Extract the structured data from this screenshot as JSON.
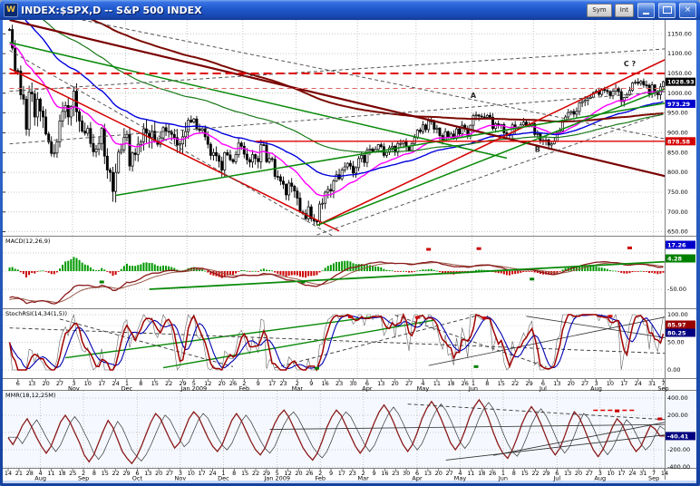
{
  "window": {
    "title": "INDEX:$SPX,D -- S&P 500 INDEX",
    "icon_letter": "W",
    "toolbar_buttons": [
      "Sym",
      "Int"
    ],
    "controls": {
      "close_glyph": "×"
    }
  },
  "colors": {
    "panel_bg": "#ffffff",
    "grid": "#b9b9b9",
    "band": "#c6d8f5",
    "candle": "#000000",
    "ema21": "#ff00ff",
    "ema50": "#0000dd",
    "ema100": "#1a7a1a",
    "ema200": "#7b0a02",
    "macd_pos": "#009900",
    "macd_neg": "#cc0000",
    "badge_last": "#000000",
    "badge_blue": "#0000cd",
    "badge_red": "#d40000",
    "badge_navy": "#000080",
    "badge_green": "#008000"
  },
  "chart_data": [
    {
      "type": "candlestick",
      "symbol": "INDEX:$SPX,D",
      "name": "S&P 500 INDEX",
      "ylim": [
        640,
        1185
      ],
      "y_ticks": [
        "1150.00",
        "1100.00",
        "1050.00",
        "1000.00",
        "950.00",
        "900.00",
        "850.00",
        "800.00",
        "750.00",
        "700.00",
        "650.00"
      ],
      "y_tick_prices": [
        1150,
        1100,
        1050,
        1000,
        950,
        900,
        850,
        800,
        750,
        700,
        650
      ],
      "closes": [
        1161,
        1114,
        1057,
        1056,
        996,
        985,
        909,
        1003,
        998,
        940,
        985,
        955,
        940,
        897,
        877,
        848,
        849,
        877,
        930,
        954,
        969,
        940,
        966,
        1005,
        953,
        930,
        904,
        899,
        911,
        873,
        852,
        859,
        873,
        911,
        841,
        806,
        800,
        752,
        800,
        851,
        857,
        888,
        896,
        816,
        849,
        845,
        871,
        877,
        910,
        899,
        888,
        904,
        879,
        871,
        887,
        913,
        904,
        902,
        896,
        888,
        869,
        872,
        890,
        903,
        932,
        927,
        935,
        910,
        906,
        910,
        890,
        871,
        843,
        850,
        842,
        828,
        806,
        850,
        844,
        832,
        827,
        845,
        874,
        866,
        846,
        832,
        826,
        845,
        835,
        827,
        870,
        869,
        827,
        835,
        833,
        790,
        789,
        778,
        770,
        743,
        773,
        765,
        753,
        735,
        700,
        696,
        683,
        713,
        683,
        677,
        676,
        720,
        722,
        750,
        757,
        753,
        778,
        794,
        784,
        806,
        814,
        823,
        816,
        798,
        812,
        835,
        843,
        825,
        856,
        859,
        852,
        858,
        870,
        865,
        843,
        851,
        862,
        866,
        851,
        873,
        873,
        878,
        866,
        855,
        873,
        888,
        907,
        903,
        920,
        908,
        930,
        929,
        909,
        912,
        893,
        883,
        903,
        888,
        897,
        887,
        910,
        897,
        919,
        910,
        893,
        919,
        943,
        945,
        942,
        940,
        939,
        944,
        939,
        911,
        923,
        918,
        921,
        900,
        893,
        896,
        920,
        910,
        913,
        920,
        927,
        919,
        920,
        923,
        896,
        898,
        881,
        879,
        882,
        869,
        872,
        879,
        901,
        905,
        932,
        940,
        951,
        954,
        947,
        954,
        976,
        979,
        982,
        987,
        990,
        1002,
        1005,
        997,
        1010,
        1007,
        1004,
        994,
        1005,
        1012,
        1004,
        979,
        989,
        996,
        1007,
        1026,
        1028,
        1025,
        1030,
        1021,
        1020,
        998,
        1021,
        1003,
        996,
        1016,
        1029
      ],
      "month_start_indices": [
        23,
        42,
        64,
        84,
        103,
        125,
        146,
        166,
        188,
        210,
        231
      ],
      "moving_averages": [
        {
          "name": "EMA21",
          "color": "#ff00ff",
          "period": 21
        },
        {
          "name": "EMA50",
          "color": "#0000dd",
          "period": 50
        },
        {
          "name": "EMA100",
          "color": "#1a7a1a",
          "period": 100
        },
        {
          "name": "EMA200",
          "color": "#7b0a02",
          "period": 200
        }
      ],
      "badges": [
        {
          "label": "1028.93",
          "price": 1028.93,
          "color": "#000000"
        },
        {
          "label": "973.29",
          "price": 973.29,
          "color": "#0000cd"
        },
        {
          "label": "878.58",
          "price": 878.58,
          "color": "#d40000"
        }
      ],
      "annotations": [
        {
          "text": "A",
          "i": 166,
          "price": 988
        },
        {
          "text": "B",
          "i": 189,
          "price": 852
        },
        {
          "text": "C ?",
          "i": 222,
          "price": 1068
        }
      ],
      "trendlines": [
        [
          0,
          1185,
          235,
          790,
          "#7a0000",
          2.2,
          ""
        ],
        [
          0,
          1062,
          118,
          652,
          "#d40000",
          1.5,
          ""
        ],
        [
          110,
          666,
          235,
          1086,
          "#d40000",
          1.5,
          ""
        ],
        [
          110,
          666,
          235,
          1012,
          "#0a8a0a",
          1.5,
          ""
        ],
        [
          38,
          742,
          235,
          975,
          "#0a8a0a",
          1.5,
          ""
        ],
        [
          0,
          1128,
          178,
          836,
          "#0a8a0a",
          1.5,
          ""
        ],
        [
          0,
          1005,
          235,
          1112,
          "#555555",
          1,
          "4,3"
        ],
        [
          0,
          872,
          235,
          1004,
          "#555555",
          1,
          "4,3"
        ],
        [
          0,
          1108,
          118,
          630,
          "#555555",
          1,
          "4,3"
        ],
        [
          26,
          1185,
          235,
          884,
          "#555555",
          1,
          "4,3"
        ],
        [
          110,
          642,
          235,
          952,
          "#555555",
          1,
          "4,3"
        ]
      ],
      "hlines": [
        [
          1050,
          0,
          235,
          "#e00000",
          2,
          "9,5"
        ],
        [
          1012,
          0,
          235,
          "#e06060",
          1,
          "5,4"
        ],
        [
          878.5,
          88,
          235,
          "#e00000",
          1.4,
          ""
        ]
      ]
    },
    {
      "type": "macd",
      "label": "MACD(12,26,9)",
      "params": [
        12,
        26,
        9
      ],
      "y_tick": "-50.00",
      "badges": [
        {
          "label": "17.26",
          "color": "#0000cd"
        },
        {
          "label": "4.28",
          "color": "#008000"
        }
      ],
      "trendline": [
        50,
        -50,
        235,
        26
      ],
      "markers": {
        "green": [
          [
            33,
            -30
          ],
          [
            105,
            -30
          ],
          [
            187,
            -22
          ]
        ],
        "red": [
          [
            150,
            60
          ],
          [
            168,
            62
          ],
          [
            222,
            64
          ]
        ]
      }
    },
    {
      "type": "stochrsi",
      "label": "StochRSI(14,34(1,5))",
      "params": [
        14,
        3,
        5
      ],
      "y_ticks": [
        "100.00",
        "50.00",
        "0.00"
      ],
      "badges": [
        {
          "label": "85.97",
          "color": "#990000"
        },
        {
          "label": "80.25",
          "color": "#000080"
        }
      ],
      "lines": [
        [
          20,
          22,
          130,
          96,
          "#0a8a0a",
          1.4,
          ""
        ],
        [
          55,
          4,
          152,
          90,
          "#0a8a0a",
          1.4,
          ""
        ],
        [
          0,
          76,
          235,
          30,
          "#333333",
          0.9,
          "4,3"
        ],
        [
          95,
          4,
          168,
          99,
          "#333333",
          0.9,
          "4,3"
        ],
        [
          138,
          99,
          192,
          6,
          "#333333",
          0.9,
          "4,3"
        ],
        [
          18,
          92,
          80,
          6,
          "#333333",
          0.9,
          "4,3"
        ],
        [
          150,
          8,
          235,
          96,
          "#333333",
          0.8,
          ""
        ],
        [
          185,
          97,
          235,
          58,
          "#333333",
          0.8,
          ""
        ]
      ],
      "markers": {
        "red": [
          [
            122,
            96
          ],
          [
            146,
            95
          ],
          [
            170,
            94
          ],
          [
            215,
            97
          ]
        ],
        "green": [
          [
            110,
            3
          ],
          [
            167,
            6
          ]
        ]
      }
    },
    {
      "type": "oscillator",
      "label": "MMR(18,12,25M)",
      "y_ticks": [
        "400.00",
        "200.00",
        "-200.00",
        "-400.00"
      ],
      "y_tick_values": [
        400,
        200,
        -200,
        -400
      ],
      "badge": {
        "label": "-40.41",
        "color": "#000080"
      },
      "values": [
        -60,
        -140,
        -40,
        80,
        160,
        60,
        -60,
        -160,
        -240,
        -160,
        -20,
        120,
        200,
        120,
        0,
        -120,
        -260,
        -340,
        -260,
        -120,
        20,
        140,
        60,
        -80,
        -220,
        -300,
        -360,
        -280,
        -160,
        -20,
        120,
        220,
        160,
        40,
        -80,
        -180,
        -120,
        20,
        160,
        240,
        180,
        60,
        -60,
        -160,
        -220,
        -140,
        0,
        140,
        220,
        140,
        20,
        -100,
        -200,
        -260,
        -180,
        -40,
        100,
        200,
        260,
        180,
        60,
        -60,
        -180,
        -260,
        -320,
        -240,
        -100,
        60,
        180,
        260,
        200,
        80,
        -40,
        -160,
        -240,
        -160,
        -20,
        120,
        240,
        320,
        240,
        120,
        -20,
        -140,
        -220,
        -140,
        0,
        160,
        280,
        360,
        280,
        160,
        20,
        -120,
        -200,
        -120,
        20,
        180,
        300,
        380,
        300,
        160,
        0,
        -140,
        -240,
        -300,
        -200,
        -60,
        100,
        220,
        300,
        220,
        100,
        -40,
        -180,
        -260,
        -180,
        -40,
        120,
        240,
        180,
        60,
        -80,
        -200,
        -280,
        -200,
        -80,
        60,
        160,
        100,
        -20,
        -140,
        -220,
        -160,
        -40,
        80,
        40,
        -40,
        -41
      ],
      "lines": [
        [
          92,
          -320,
          138,
          -28,
          "#333333",
          0.9,
          ""
        ],
        [
          102,
          -265,
          138,
          118,
          "#333333",
          0.9,
          ""
        ],
        [
          55,
          36,
          138,
          92,
          "#333333",
          0.8,
          ""
        ],
        [
          84,
          330,
          138,
          150,
          "#333333",
          0.9,
          "4,3"
        ],
        [
          123,
          258,
          132,
          258,
          "#e00000",
          1.6,
          "5,3"
        ]
      ],
      "markers": {
        "red": [
          [
            128,
            250
          ],
          [
            137,
            158
          ]
        ]
      }
    }
  ],
  "axes": {
    "main_ticks": [
      [
        3,
        "6"
      ],
      [
        8,
        "13"
      ],
      [
        13,
        "20"
      ],
      [
        18,
        "27"
      ],
      [
        23,
        "3",
        "Nov"
      ],
      [
        28,
        "10"
      ],
      [
        33,
        "17"
      ],
      [
        38,
        "24"
      ],
      [
        42,
        "1",
        "Dec"
      ],
      [
        47,
        "8"
      ],
      [
        52,
        "15"
      ],
      [
        57,
        "22"
      ],
      [
        62,
        "29"
      ],
      [
        66,
        "5",
        "Jan 2009"
      ],
      [
        71,
        "12"
      ],
      [
        76,
        "20"
      ],
      [
        80,
        "26"
      ],
      [
        84,
        "2",
        "Feb"
      ],
      [
        89,
        "9"
      ],
      [
        94,
        "17"
      ],
      [
        98,
        "23"
      ],
      [
        103,
        "2",
        "Mar"
      ],
      [
        108,
        "9"
      ],
      [
        113,
        "16"
      ],
      [
        118,
        "23"
      ],
      [
        123,
        "30"
      ],
      [
        128,
        "6",
        "Apr"
      ],
      [
        133,
        "13"
      ],
      [
        138,
        "20"
      ],
      [
        143,
        "27"
      ],
      [
        148,
        "4",
        "May"
      ],
      [
        153,
        "11"
      ],
      [
        158,
        "18"
      ],
      [
        163,
        "26"
      ],
      [
        166,
        "1",
        "Jun"
      ],
      [
        171,
        "8"
      ],
      [
        176,
        "15"
      ],
      [
        181,
        "22"
      ],
      [
        186,
        "29"
      ],
      [
        191,
        "6",
        "Jul"
      ],
      [
        196,
        "13"
      ],
      [
        201,
        "20"
      ],
      [
        206,
        "27"
      ],
      [
        210,
        "3",
        "Aug"
      ],
      [
        215,
        "10"
      ],
      [
        220,
        "17"
      ],
      [
        225,
        "24"
      ],
      [
        230,
        "31"
      ],
      [
        234,
        "7",
        "Sep"
      ]
    ],
    "lower_ticks": [
      [
        "14"
      ],
      [
        "21"
      ],
      [
        "28"
      ],
      [
        "4",
        "Aug"
      ],
      [
        "11"
      ],
      [
        "18"
      ],
      [
        "25"
      ],
      [
        "2",
        "Sep"
      ],
      [
        "8"
      ],
      [
        "15"
      ],
      [
        "22"
      ],
      [
        "29"
      ],
      [
        "6",
        "Oct"
      ],
      [
        "13"
      ],
      [
        "20"
      ],
      [
        "27"
      ],
      [
        "3",
        "Nov"
      ],
      [
        "10"
      ],
      [
        "17"
      ],
      [
        "24"
      ],
      [
        "1",
        "Dec"
      ],
      [
        "8"
      ],
      [
        "15"
      ],
      [
        "22"
      ],
      [
        "29"
      ],
      [
        "5",
        "Jan 2009"
      ],
      [
        "12"
      ],
      [
        "20"
      ],
      [
        "26"
      ],
      [
        "2",
        "Feb"
      ],
      [
        "9"
      ],
      [
        "17"
      ],
      [
        "23"
      ],
      [
        "2",
        "Mar"
      ],
      [
        "9"
      ],
      [
        "16"
      ],
      [
        "23"
      ],
      [
        "30"
      ],
      [
        "6",
        "Apr"
      ],
      [
        "13"
      ],
      [
        "20"
      ],
      [
        "27"
      ],
      [
        "4",
        "May"
      ],
      [
        "11"
      ],
      [
        "18"
      ],
      [
        "26"
      ],
      [
        "1",
        "Jun"
      ],
      [
        "8"
      ],
      [
        "15"
      ],
      [
        "22"
      ],
      [
        "29"
      ],
      [
        "6",
        "Jul"
      ],
      [
        "13"
      ],
      [
        "20"
      ],
      [
        "27"
      ],
      [
        "3",
        "Aug"
      ],
      [
        "10"
      ],
      [
        "17"
      ],
      [
        "24"
      ],
      [
        "31"
      ],
      [
        "7",
        "Sep"
      ],
      [
        "14"
      ]
    ]
  }
}
